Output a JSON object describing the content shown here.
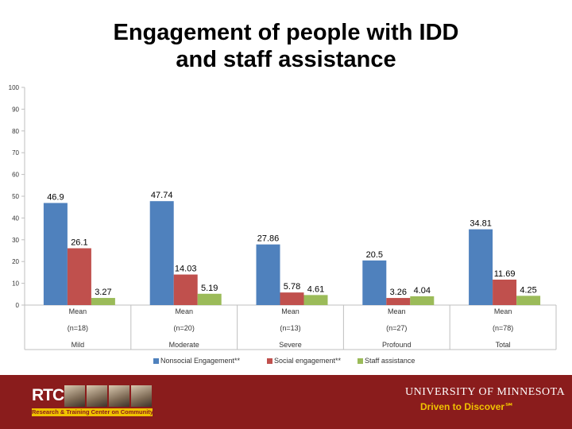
{
  "slide": {
    "title_line1": "Engagement of people with IDD",
    "title_line2": "and staff assistance"
  },
  "chart_data": {
    "type": "bar",
    "title": "Engagement of people with IDD and staff assistance",
    "categories": [
      {
        "lines": [
          "Mean",
          "(n=18)",
          "Mild"
        ]
      },
      {
        "lines": [
          "Mean",
          "(n=20)",
          "Moderate"
        ]
      },
      {
        "lines": [
          "Mean",
          "(n=13)",
          "Severe"
        ]
      },
      {
        "lines": [
          "Mean",
          "(n=27)",
          "Profound"
        ]
      },
      {
        "lines": [
          "Mean",
          "(n=78)",
          "Total"
        ]
      }
    ],
    "series": [
      {
        "name": "Nonsocial Engagement**",
        "color": "#4f81bd",
        "values": [
          46.9,
          47.74,
          27.86,
          20.5,
          34.81
        ],
        "labels": [
          "46.9",
          "47.74",
          "27.86",
          "20.5",
          "34.81"
        ]
      },
      {
        "name": "Social engagement**",
        "color": "#c0504d",
        "values": [
          26.1,
          14.03,
          5.78,
          3.26,
          11.69
        ],
        "labels": [
          "26.1",
          "14.03",
          "5.78",
          "3.26",
          "11.69"
        ]
      },
      {
        "name": "Staff assistance",
        "color": "#9bbb59",
        "values": [
          3.27,
          5.19,
          4.61,
          4.04,
          4.25
        ],
        "labels": [
          "3.27",
          "5.19",
          "4.61",
          "4.04",
          "4.25"
        ]
      }
    ],
    "ylim": [
      0,
      100
    ],
    "yticks": [
      0,
      10,
      20,
      30,
      40,
      50,
      60,
      70,
      80,
      90,
      100
    ],
    "grid": false,
    "legend_position": "bottom"
  },
  "footer": {
    "rtc_logo_text": "RTC",
    "rtc_subtitle": "Research & Training Center on Community Living",
    "university_name": "UNIVERSITY OF MINNESOTA",
    "tagline": "Driven to Discover℠",
    "colors": {
      "background": "#8a1c1c",
      "gold": "#f0c200"
    },
    "icon_names": [
      "rtc-logo-photos-icon"
    ]
  }
}
